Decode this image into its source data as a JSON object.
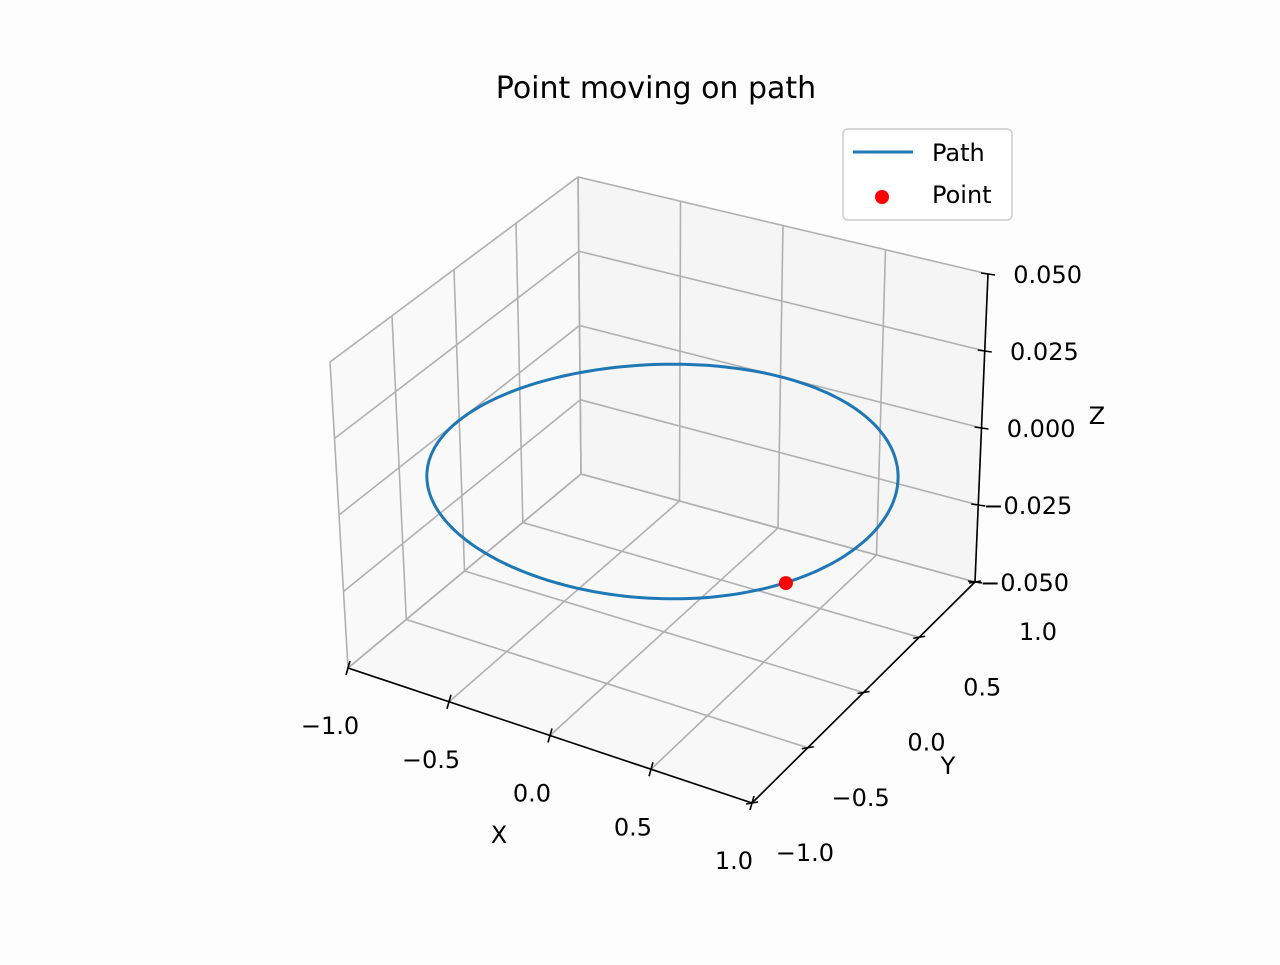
{
  "chart_data": {
    "type": "line",
    "projection": "3d",
    "title": "Point moving on path",
    "xlabel": "X",
    "ylabel": "Y",
    "zlabel": "Z",
    "xlim": [
      -1.0,
      1.0
    ],
    "ylim": [
      -1.0,
      1.0
    ],
    "zlim": [
      -0.05,
      0.05
    ],
    "xticks": [
      "−1.0",
      "−0.5",
      "0.0",
      "0.5",
      "1.0"
    ],
    "yticks": [
      "−1.0",
      "−0.5",
      "0.0",
      "0.5",
      "1.0"
    ],
    "zticks": [
      "−0.050",
      "−0.025",
      "0.000",
      "0.025",
      "0.050"
    ],
    "grid": true,
    "legend_position": "top-right",
    "series": [
      {
        "name": "Path",
        "kind": "line",
        "color": "#1f77b4",
        "shape": "circle",
        "radius": 1.0,
        "z": 0.0
      },
      {
        "name": "Point",
        "kind": "scatter",
        "color": "#ff0000",
        "x": 0.87,
        "y": -0.5,
        "z": 0.0
      }
    ]
  }
}
